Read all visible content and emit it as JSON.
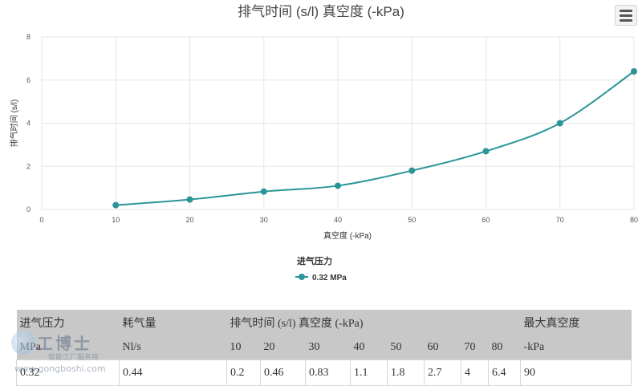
{
  "chart_data": {
    "type": "line",
    "title": "排气时间 (s/l) 真空度 (-kPa)",
    "xlabel": "真空度 (-kPa)",
    "ylabel": "排气时间 (s/l)",
    "xlim": [
      0,
      80
    ],
    "ylim": [
      0,
      8
    ],
    "xticks": [
      0,
      10,
      20,
      30,
      40,
      50,
      60,
      70,
      80
    ],
    "yticks": [
      0,
      2,
      4,
      6,
      8
    ],
    "grid": true,
    "legend_position": "bottom-center",
    "legend_title": "进气压力",
    "series": [
      {
        "name": "0.32 MPa",
        "color": "#2a9596",
        "x": [
          10,
          20,
          30,
          40,
          50,
          60,
          70,
          80
        ],
        "y": [
          0.2,
          0.46,
          0.83,
          1.1,
          1.8,
          2.7,
          4,
          6.4
        ]
      }
    ]
  },
  "menu": {
    "icon": "hamburger-menu-icon"
  },
  "table": {
    "header_row1": [
      "进气压力",
      "耗气量",
      "排气时间 (s/l) 真空度 (-kPa)",
      "最大真空度"
    ],
    "header_row2": [
      "MPa",
      "Nl/s",
      "10",
      "20",
      "30",
      "40",
      "50",
      "60",
      "70",
      "80",
      "-kPa"
    ],
    "row": [
      "0.32",
      "0.44",
      "0.2",
      "0.46",
      "0.83",
      "1.1",
      "1.8",
      "2.7",
      "4",
      "6.4",
      "90"
    ]
  },
  "watermark": {
    "title": "工博士",
    "subtitle": "智能工厂服务商",
    "url": "www.gongboshi.com"
  }
}
